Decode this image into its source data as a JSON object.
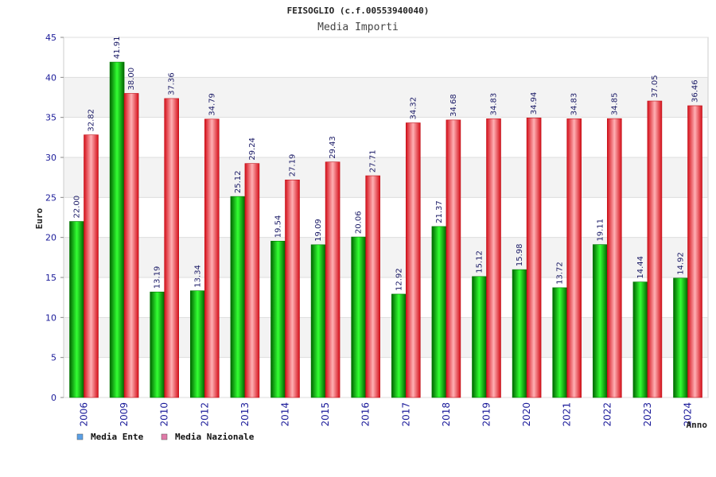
{
  "chart_data": {
    "type": "bar",
    "title": "FEISOGLIO (c.f.00553940040)",
    "subtitle": "Media Importi",
    "xlabel": "Anno",
    "ylabel": "Euro",
    "ylim": [
      0,
      45
    ],
    "yticks": [
      0,
      5,
      10,
      15,
      20,
      25,
      30,
      35,
      40,
      45
    ],
    "ytick_labels": [
      "0",
      "5",
      "10",
      "15",
      "20",
      "25",
      "30",
      "35",
      "40",
      "45"
    ],
    "categories": [
      "2006",
      "2009",
      "2010",
      "2012",
      "2013",
      "2014",
      "2015",
      "2016",
      "2017",
      "2018",
      "2019",
      "2020",
      "2021",
      "2022",
      "2023",
      "2024"
    ],
    "series": [
      {
        "name": "Media Ente",
        "values": [
          22.0,
          41.91,
          13.19,
          13.34,
          25.12,
          19.54,
          19.09,
          20.06,
          12.92,
          21.37,
          15.12,
          15.98,
          13.72,
          19.11,
          14.44,
          14.92
        ],
        "labels": [
          "22.00",
          "41.91",
          "13.19",
          "13.34",
          "25.12",
          "19.54",
          "19.09",
          "20.06",
          "12.92",
          "21.37",
          "15.12",
          "15.98",
          "13.72",
          "19.11",
          "14.44",
          "14.92"
        ],
        "color": "#00b000",
        "legend_color": "#5aa0e6"
      },
      {
        "name": "Media Nazionale",
        "values": [
          32.82,
          38.0,
          37.36,
          34.79,
          29.24,
          27.19,
          29.43,
          27.71,
          34.32,
          34.68,
          34.83,
          34.94,
          34.83,
          34.85,
          37.05,
          36.46
        ],
        "labels": [
          "32.82",
          "38.00",
          "37.36",
          "34.79",
          "29.24",
          "27.19",
          "29.43",
          "27.71",
          "34.32",
          "34.68",
          "34.83",
          "34.94",
          "34.83",
          "34.85",
          "37.05",
          "36.46"
        ],
        "color": "#e8202a",
        "legend_color": "#e07aa8"
      }
    ],
    "grid": true,
    "legend_position": "bottom-left"
  }
}
